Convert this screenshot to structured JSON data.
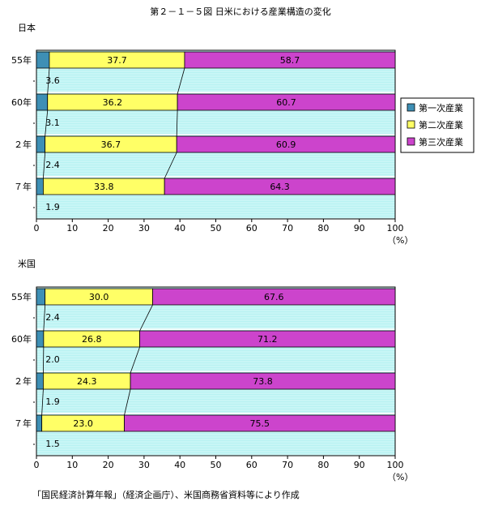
{
  "title": "第２－１－５図 日米における産業構造の変化",
  "unit": "（%）",
  "source": "「国民経済計算年報」（経済企画庁）、米国商務省資料等により作成",
  "colors": {
    "primary": "#3e8fb5",
    "secondary": "#ffff66",
    "tertiary": "#cc44cc",
    "plot_bg": "#b8f2f2"
  },
  "legend": [
    "第一次産業",
    "第二次産業",
    "第三次産業"
  ],
  "chart_data": [
    {
      "type": "bar",
      "stacked": true,
      "orientation": "horizontal",
      "panel_label": "日本",
      "categories": [
        "55年",
        "60年",
        "２年",
        "７年"
      ],
      "series": [
        {
          "name": "第一次産業",
          "values": [
            3.6,
            3.1,
            2.4,
            1.9
          ]
        },
        {
          "name": "第二次産業",
          "values": [
            37.7,
            36.2,
            36.7,
            33.8
          ]
        },
        {
          "name": "第三次産業",
          "values": [
            58.7,
            60.7,
            60.9,
            64.3
          ]
        }
      ],
      "xlim": [
        0,
        100
      ],
      "xticks": [
        0,
        10,
        20,
        30,
        40,
        50,
        60,
        70,
        80,
        90,
        100
      ],
      "legend_position": "right"
    },
    {
      "type": "bar",
      "stacked": true,
      "orientation": "horizontal",
      "panel_label": "米国",
      "categories": [
        "55年",
        "60年",
        "２年",
        "７年"
      ],
      "series": [
        {
          "name": "第一次産業",
          "values": [
            2.4,
            2.0,
            1.9,
            1.5
          ]
        },
        {
          "name": "第二次産業",
          "values": [
            30.0,
            26.8,
            24.3,
            23.0
          ]
        },
        {
          "name": "第三次産業",
          "values": [
            67.6,
            71.2,
            73.8,
            75.5
          ]
        }
      ],
      "xlim": [
        0,
        100
      ],
      "xticks": [
        0,
        10,
        20,
        30,
        40,
        50,
        60,
        70,
        80,
        90,
        100
      ]
    }
  ]
}
